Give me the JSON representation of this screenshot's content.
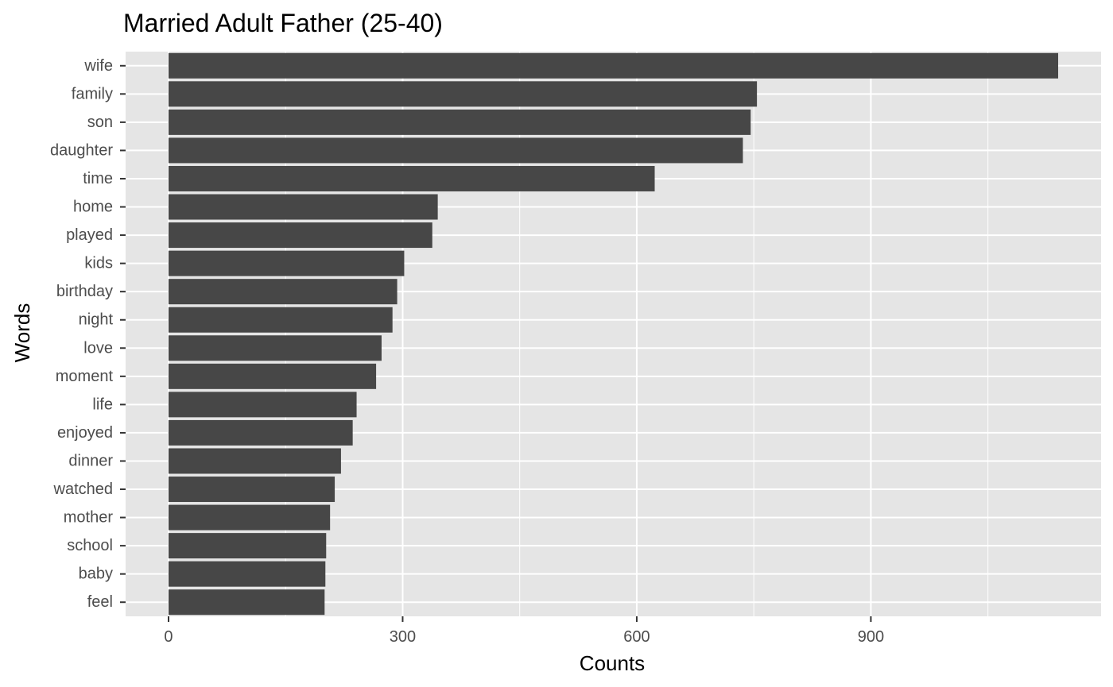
{
  "chart_data": {
    "type": "bar",
    "orientation": "horizontal",
    "title": "Married Adult Father (25-40)",
    "xlabel": "Counts",
    "ylabel": "Words",
    "categories": [
      "wife",
      "family",
      "son",
      "daughter",
      "time",
      "home",
      "played",
      "kids",
      "birthday",
      "night",
      "love",
      "moment",
      "life",
      "enjoyed",
      "dinner",
      "watched",
      "mother",
      "school",
      "baby",
      "feel"
    ],
    "values": [
      1140,
      754,
      746,
      736,
      623,
      345,
      338,
      302,
      293,
      287,
      273,
      266,
      241,
      236,
      221,
      213,
      207,
      202,
      201,
      200
    ],
    "x_ticks": [
      0,
      300,
      600,
      900
    ],
    "xlim": [
      -55,
      1195
    ],
    "grid": true,
    "colors": {
      "bar": "#474747",
      "panel": "#e5e5e5",
      "grid": "#ffffff",
      "tick": "#333333"
    }
  }
}
